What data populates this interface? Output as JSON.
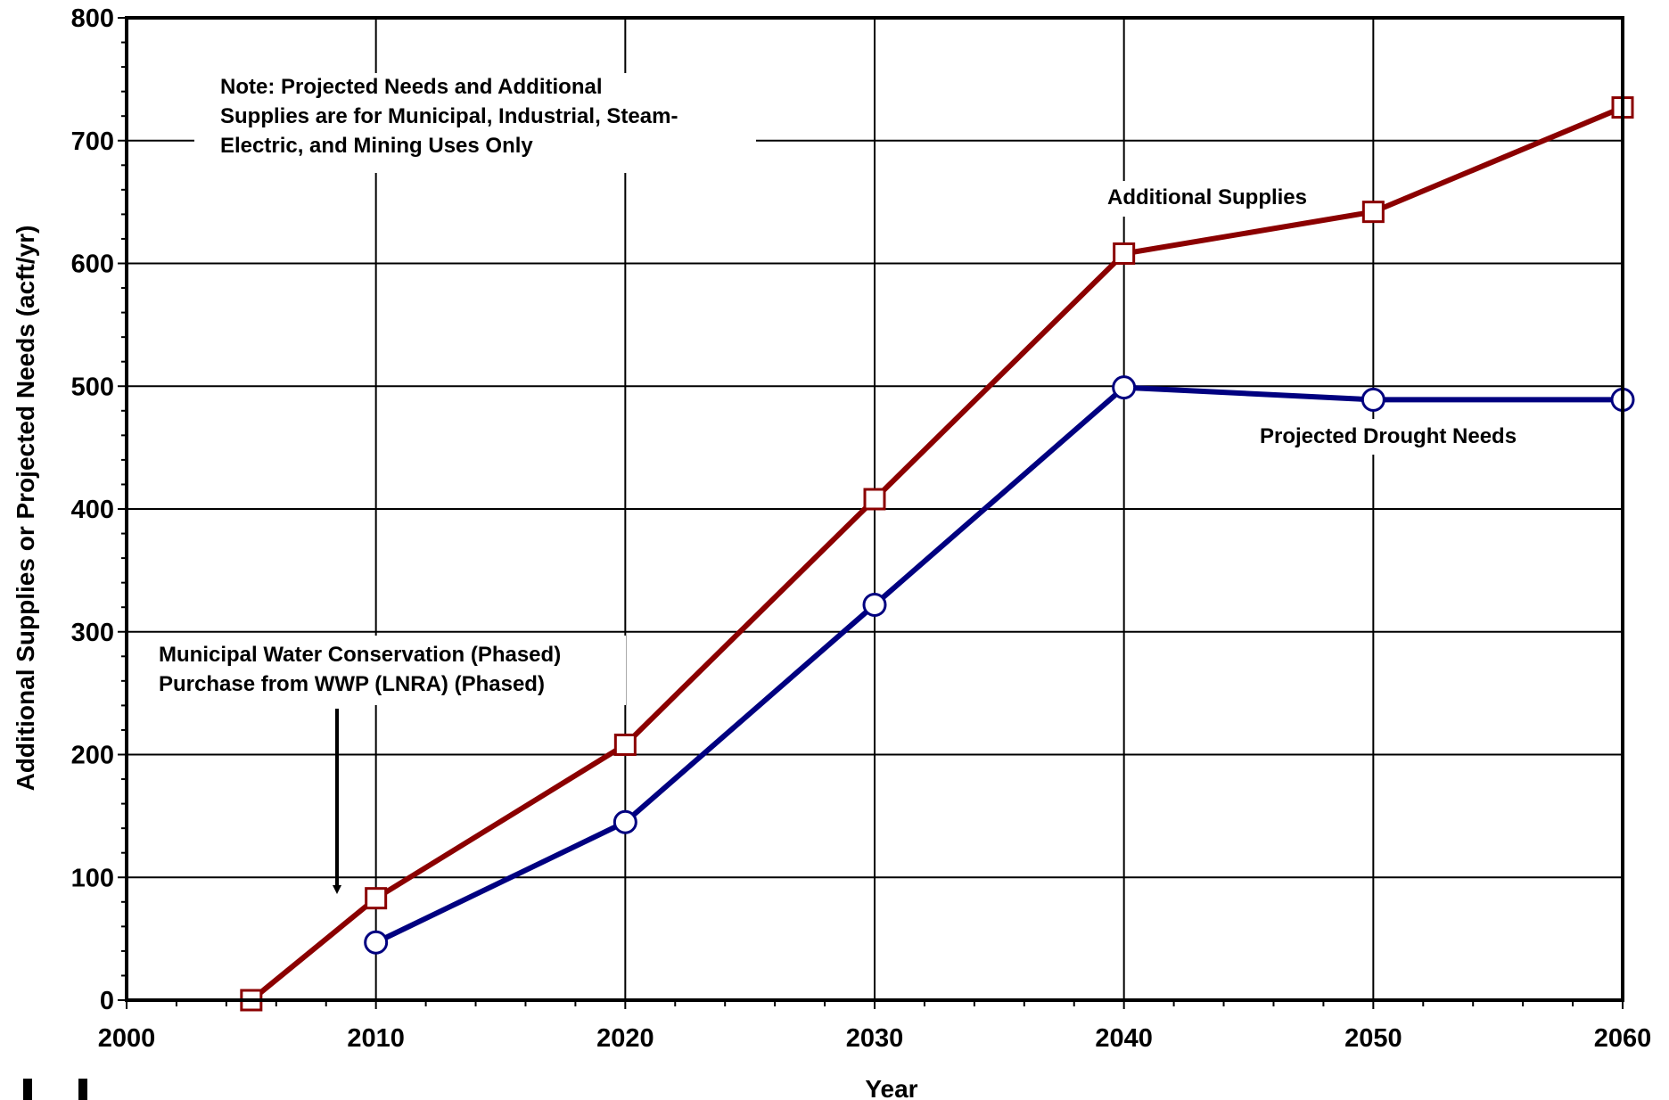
{
  "chart_data": {
    "type": "line",
    "title": "",
    "xlabel": "Year",
    "ylabel": "Additional Supplies or Projected Needs (acft/yr)",
    "xlim": [
      2000,
      2060
    ],
    "ylim": [
      0,
      800
    ],
    "x_ticks": [
      "2000",
      "2010",
      "2020",
      "2030",
      "2040",
      "2050",
      "2060"
    ],
    "y_ticks": [
      "0",
      "100",
      "200",
      "300",
      "400",
      "500",
      "600",
      "700",
      "800"
    ],
    "grid": true,
    "series": [
      {
        "name": "Additional Supplies",
        "color": "#8B0000",
        "marker": "square",
        "x": [
          2005,
          2010,
          2020,
          2030,
          2040,
          2050,
          2060
        ],
        "y": [
          0,
          83,
          208,
          408,
          608,
          642,
          727
        ]
      },
      {
        "name": "Projected Drought Needs",
        "color": "#000080",
        "marker": "circle",
        "x": [
          2010,
          2020,
          2030,
          2040,
          2050,
          2060
        ],
        "y": [
          47,
          145,
          322,
          499,
          489,
          489
        ]
      }
    ],
    "annotations": {
      "note_lines": [
        "Note:  Projected Needs and Additional",
        "Supplies are for Municipal, Industrial, Steam-",
        "Electric, and Mining Uses Only"
      ],
      "strategy_lines": [
        "Municipal Water Conservation (Phased)",
        "Purchase from WWP (LNRA) (Phased)"
      ]
    }
  }
}
